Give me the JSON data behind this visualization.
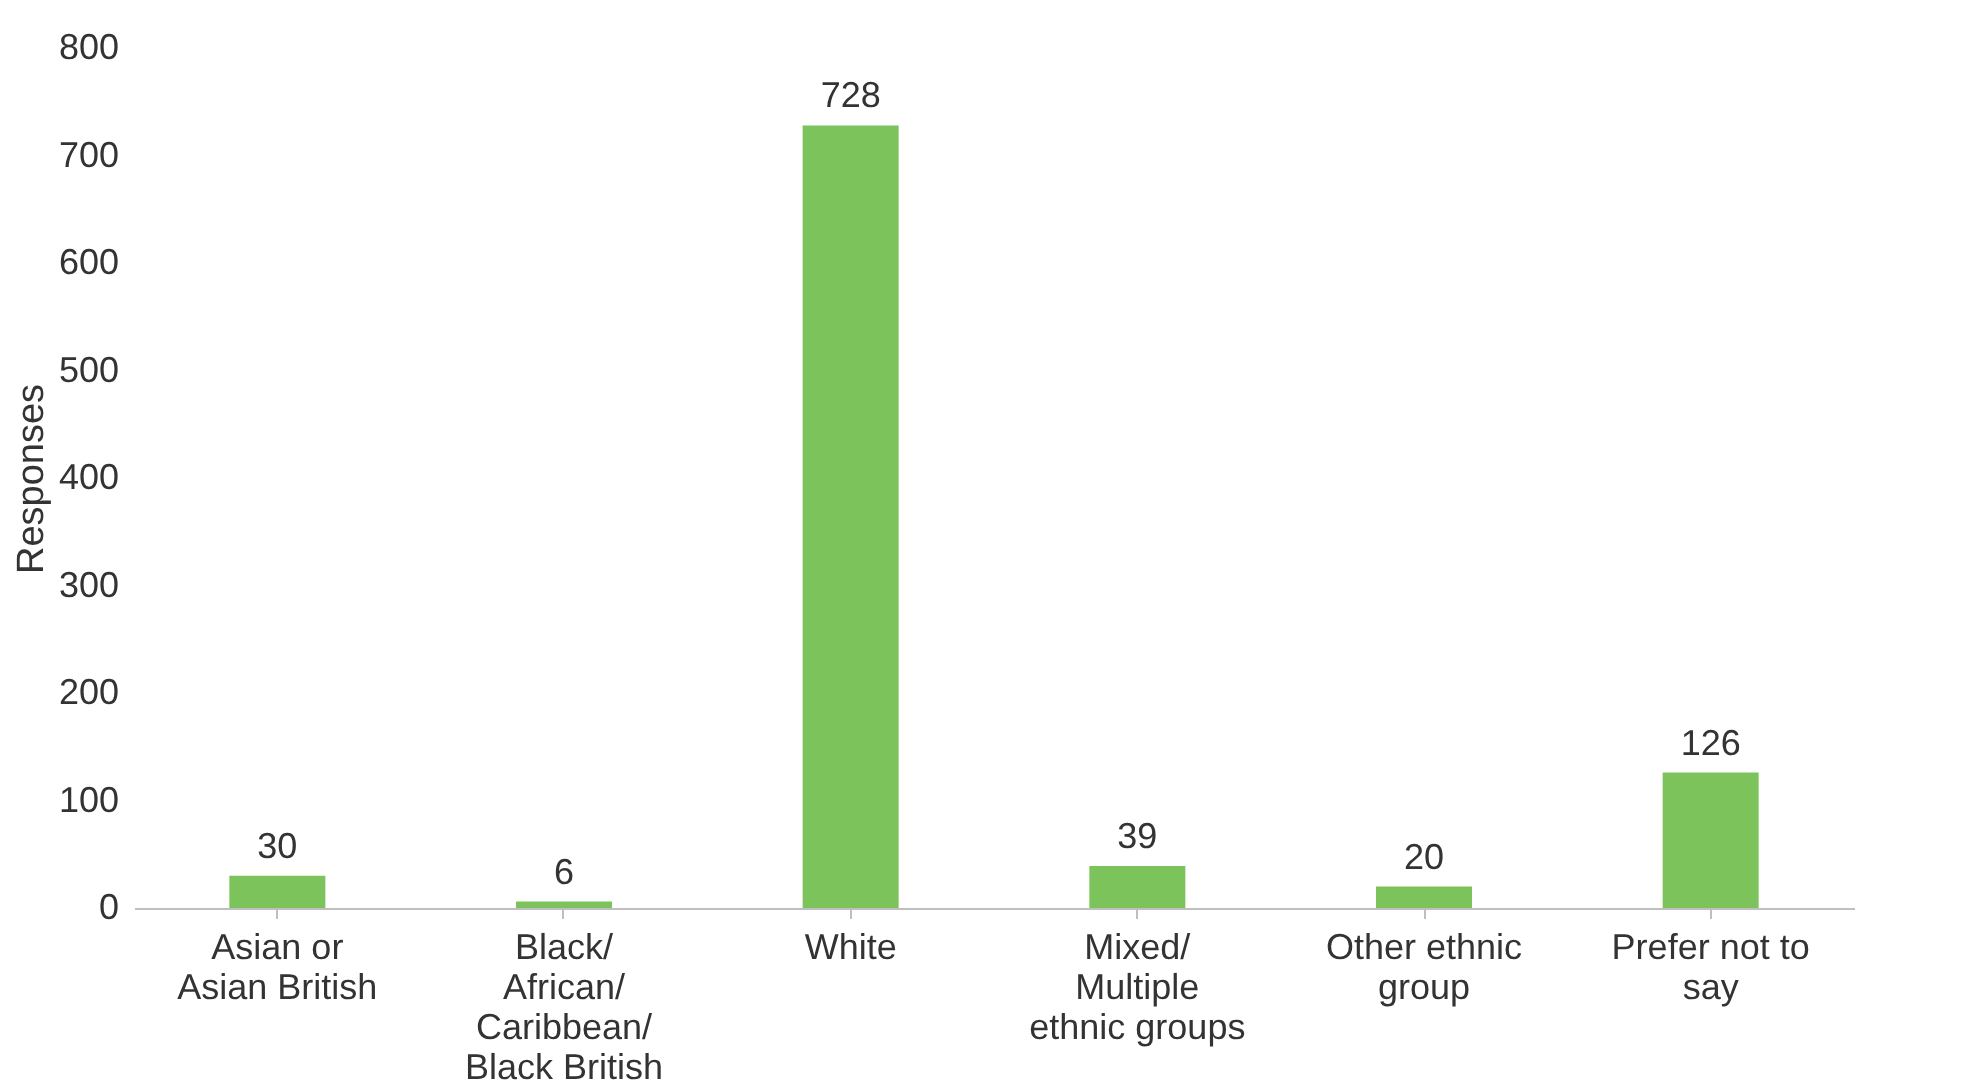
{
  "chart_data": {
    "type": "bar",
    "categories": [
      "Asian or Asian British",
      "Black/African/Caribbean/Black British",
      "White",
      "Mixed/Multiple ethnic groups",
      "Other ethnic group",
      "Prefer not to say"
    ],
    "values": [
      30,
      6,
      728,
      39,
      20,
      126
    ],
    "color": "#7dc35b",
    "ylabel": "Responses",
    "ylim": [
      0,
      800
    ],
    "yticks": [
      0,
      100,
      200,
      300,
      400,
      500,
      600,
      700,
      800
    ],
    "grid": false,
    "data_labels": true
  }
}
